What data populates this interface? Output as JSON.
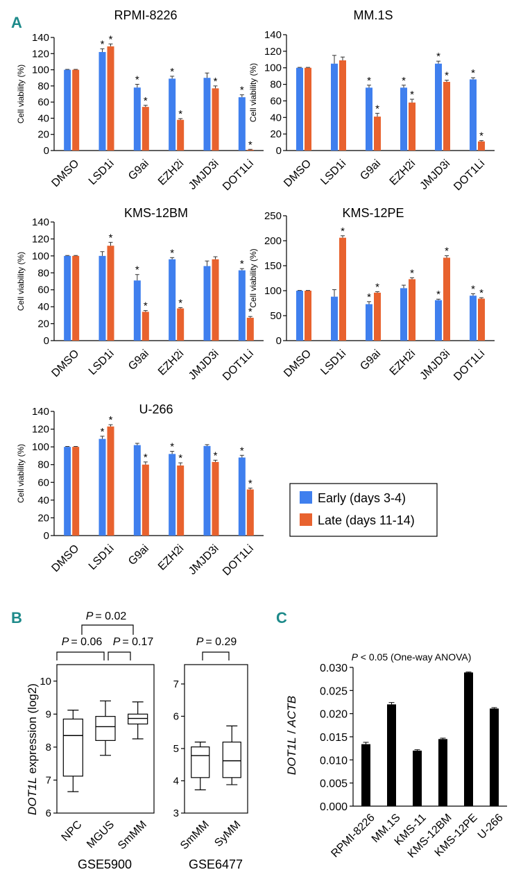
{
  "panel_letters": {
    "a": "A",
    "b": "B",
    "c": "C"
  },
  "colors": {
    "early": "#3f7fee",
    "late": "#e8622e",
    "black": "#000000",
    "panel_letter": "#1d8a8a"
  },
  "legend": {
    "early": "Early (days 3-4)",
    "late": "Late (days 11-14)"
  },
  "panel_a_ylabel": "Cell viability (%)",
  "panel_b": {
    "ylabel_italic": "DOT1L",
    "ylabel_rest": " expression (log2)",
    "pvalues": {
      "npc_smmm": "= 0.02",
      "npc_mgus": "= 0.06",
      "mgus_smmm": "= 0.17",
      "smmm_symm": "= 0.29",
      "p": "P"
    },
    "dataset1": "GSE5900",
    "dataset2": "GSE6477"
  },
  "panel_c": {
    "ylabel_italic1": "DOT1L",
    "ylabel_sep": " / ",
    "ylabel_italic2": "ACTB",
    "anova_italic": "P",
    "anova_text": " < 0.05 (One-way ANOVA)"
  },
  "chart_data": [
    {
      "type": "bar",
      "title": "RPMI-8226",
      "ylabel": "Cell viability (%)",
      "ylim": [
        0,
        140
      ],
      "yticks": [
        0,
        20,
        40,
        60,
        80,
        100,
        120,
        140
      ],
      "categories": [
        "DMSO",
        "LSD1i",
        "G9ai",
        "EZH2i",
        "JMJD3i",
        "DOT1Li"
      ],
      "series": [
        {
          "name": "Early (days 3-4)",
          "values": [
            100,
            122,
            78,
            89,
            90,
            66
          ],
          "errors": [
            0.5,
            4,
            4,
            3,
            6,
            3
          ],
          "significant": [
            false,
            true,
            true,
            true,
            false,
            true
          ]
        },
        {
          "name": "Late (days 11-14)",
          "values": [
            100,
            129,
            54,
            38,
            77,
            1
          ],
          "errors": [
            0.5,
            3,
            2,
            1.5,
            3,
            0.5
          ],
          "significant": [
            false,
            true,
            true,
            true,
            true,
            true
          ]
        }
      ]
    },
    {
      "type": "bar",
      "title": "MM.1S",
      "ylabel": "Cell viability (%)",
      "ylim": [
        0,
        140
      ],
      "yticks": [
        0,
        20,
        40,
        60,
        80,
        100,
        120,
        140
      ],
      "categories": [
        "DMSO",
        "LSD1i",
        "G9ai",
        "EZH2i",
        "JMJD3i",
        "DOT1Li"
      ],
      "series": [
        {
          "name": "Early (days 3-4)",
          "values": [
            100,
            105,
            76,
            76,
            105,
            86
          ],
          "errors": [
            0.5,
            10,
            3,
            3,
            3,
            2
          ],
          "significant": [
            false,
            false,
            true,
            true,
            true,
            true
          ]
        },
        {
          "name": "Late (days 11-14)",
          "values": [
            100,
            109,
            41,
            58,
            83,
            11
          ],
          "errors": [
            0.5,
            4,
            4,
            4,
            2,
            1
          ],
          "significant": [
            false,
            false,
            true,
            true,
            true,
            true
          ]
        }
      ]
    },
    {
      "type": "bar",
      "title": "KMS-12BM",
      "ylabel": "Cell viability (%)",
      "ylim": [
        0,
        140
      ],
      "yticks": [
        0,
        20,
        40,
        60,
        80,
        100,
        120,
        140
      ],
      "categories": [
        "DMSO",
        "LSD1i",
        "G9ai",
        "EZH2i",
        "JMJD3i",
        "DOT1Li"
      ],
      "series": [
        {
          "name": "Early (days 3-4)",
          "values": [
            100,
            100,
            71,
            96,
            88,
            83
          ],
          "errors": [
            0.5,
            5,
            7,
            2,
            6,
            2
          ],
          "significant": [
            false,
            false,
            true,
            true,
            false,
            true
          ]
        },
        {
          "name": "Late (days 11-14)",
          "values": [
            100,
            112,
            34,
            38,
            96,
            27
          ],
          "errors": [
            0.5,
            4,
            1.5,
            1,
            3,
            1.5
          ],
          "significant": [
            false,
            true,
            true,
            true,
            false,
            true
          ]
        }
      ]
    },
    {
      "type": "bar",
      "title": "KMS-12PE",
      "ylabel": "Cell viability (%)",
      "ylim": [
        0,
        250
      ],
      "yticks": [
        0,
        50,
        100,
        150,
        200,
        250
      ],
      "categories": [
        "DMSO",
        "LSD1i",
        "G9ai",
        "EZH2i",
        "JMJD3i",
        "DOT1Li"
      ],
      "series": [
        {
          "name": "Early (days 3-4)",
          "values": [
            100,
            88,
            73,
            105,
            81,
            90
          ],
          "errors": [
            0.5,
            14,
            5,
            6,
            2,
            4
          ],
          "significant": [
            false,
            false,
            true,
            false,
            true,
            true
          ]
        },
        {
          "name": "Late (days 11-14)",
          "values": [
            100,
            206,
            96,
            123,
            166,
            84
          ],
          "errors": [
            0.5,
            4,
            2,
            3,
            4,
            2
          ],
          "significant": [
            false,
            true,
            true,
            true,
            true,
            true
          ]
        }
      ]
    },
    {
      "type": "bar",
      "title": "U-266",
      "ylabel": "Cell viability (%)",
      "ylim": [
        0,
        140
      ],
      "yticks": [
        0,
        20,
        40,
        60,
        80,
        100,
        120,
        140
      ],
      "categories": [
        "DMSO",
        "LSD1i",
        "G9ai",
        "EZH2i",
        "JMJD3i",
        "DOT1Li"
      ],
      "series": [
        {
          "name": "Early (days 3-4)",
          "values": [
            100,
            109,
            102,
            92,
            101,
            88
          ],
          "errors": [
            0.5,
            3,
            2,
            3,
            1.5,
            2.5
          ],
          "significant": [
            false,
            true,
            false,
            true,
            false,
            true
          ]
        },
        {
          "name": "Late (days 11-14)",
          "values": [
            100,
            123,
            80,
            79,
            83,
            52
          ],
          "errors": [
            0.5,
            2,
            3,
            3,
            2,
            1.5
          ],
          "significant": [
            false,
            true,
            true,
            true,
            true,
            true
          ]
        }
      ]
    },
    {
      "type": "box",
      "dataset": "GSE5900",
      "ylim": [
        6,
        10.5
      ],
      "yticks": [
        6,
        7,
        8,
        9,
        10
      ],
      "categories": [
        "NPC",
        "MGUS",
        "SmMM"
      ],
      "boxes": [
        {
          "min": 6.65,
          "q1": 7.12,
          "median": 8.35,
          "q3": 8.85,
          "max": 9.12
        },
        {
          "min": 7.75,
          "q1": 8.2,
          "median": 8.62,
          "q3": 8.93,
          "max": 9.4
        },
        {
          "min": 8.25,
          "q1": 8.7,
          "median": 8.87,
          "q3": 9.0,
          "max": 9.37
        }
      ]
    },
    {
      "type": "box",
      "dataset": "GSE6477",
      "ylim": [
        3,
        7.6
      ],
      "yticks": [
        3,
        4,
        5,
        6,
        7
      ],
      "categories": [
        "SmMM",
        "SyMM"
      ],
      "boxes": [
        {
          "min": 3.72,
          "q1": 4.1,
          "median": 4.78,
          "q3": 5.05,
          "max": 5.2
        },
        {
          "min": 3.88,
          "q1": 4.1,
          "median": 4.62,
          "q3": 5.2,
          "max": 5.7
        }
      ]
    },
    {
      "type": "bar",
      "ylabel": "DOT1L / ACTB",
      "ylim": [
        0,
        0.03
      ],
      "yticks": [
        0.0,
        0.005,
        0.01,
        0.015,
        0.02,
        0.025,
        0.03
      ],
      "ytick_labels": [
        "0.000",
        "0.005",
        "0.010",
        "0.015",
        "0.020",
        "0.025",
        "0.030"
      ],
      "categories": [
        "RPMI-8226",
        "MM.1S",
        "KMS-11",
        "KMS-12BM",
        "KMS-12PE",
        "U-266"
      ],
      "values": [
        0.0134,
        0.022,
        0.012,
        0.0145,
        0.0289,
        0.0211
      ],
      "errors": [
        0.0004,
        0.0004,
        0.0002,
        0.0002,
        0.0001,
        0.0002
      ]
    }
  ]
}
